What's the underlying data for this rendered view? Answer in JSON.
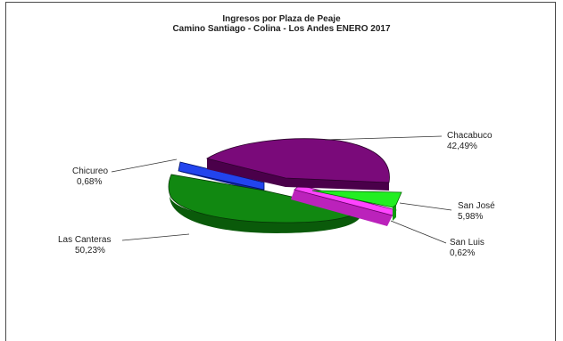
{
  "chart_data": {
    "type": "pie",
    "title": "Ingresos por Plaza de Peaje",
    "subtitle": "Camino Santiago - Colina - Los Andes ENERO 2017",
    "slices": [
      {
        "name": "Chacabuco",
        "value_label": "42,49%",
        "value": 42.49,
        "color": "#7a0a7a",
        "side": "#4a004a"
      },
      {
        "name": "San José",
        "value_label": "5,98%",
        "value": 5.98,
        "color": "#22ee22",
        "side": "#119911"
      },
      {
        "name": "San Luis",
        "value_label": "0,62%",
        "value": 0.62,
        "color": "#ff44ff",
        "side": "#bb22bb"
      },
      {
        "name": "Las Canteras",
        "value_label": "50,23%",
        "value": 50.23,
        "color": "#118811",
        "side": "#0a5a0a"
      },
      {
        "name": "Chicureo",
        "value_label": "0,68%",
        "value": 0.68,
        "color": "#2244ee",
        "side": "#112299"
      }
    ]
  }
}
